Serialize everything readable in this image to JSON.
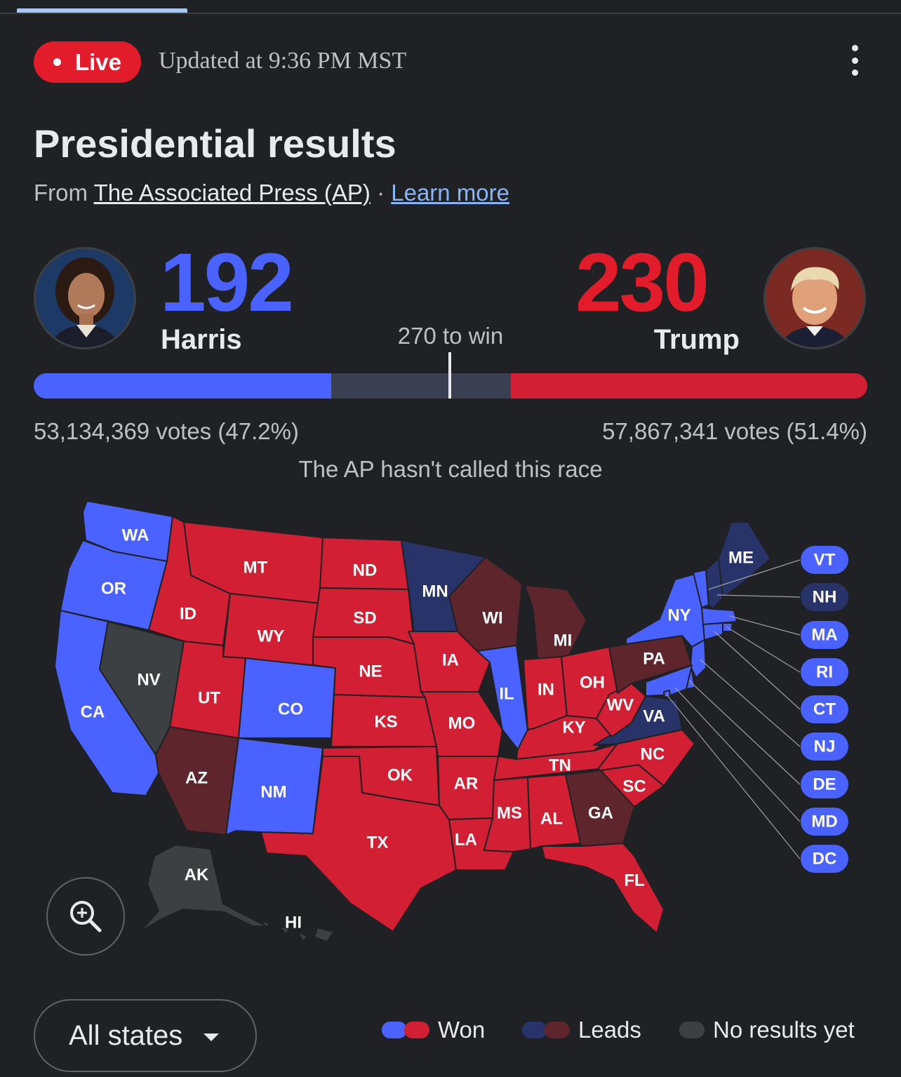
{
  "status": {
    "live_label": "Live",
    "updated_text": "Updated at 9:36 PM MST"
  },
  "header": {
    "title": "Presidential results",
    "source_prefix": "From",
    "source_name": "The Associated Press (AP)",
    "separator": "·",
    "learn_more": "Learn more"
  },
  "candidates": {
    "dem": {
      "name": "Harris",
      "electoral_votes": "192",
      "votes_text": "53,134,369 votes (47.2%)",
      "color": "#4a62ff"
    },
    "rep": {
      "name": "Trump",
      "electoral_votes": "230",
      "votes_text": "57,867,341 votes (51.4%)",
      "color": "#e21c2a"
    }
  },
  "threshold_label": "270 to win",
  "race_status": "The AP hasn't called this race",
  "colors": {
    "dem_won": "#4a62ff",
    "rep_won": "#d21f33",
    "dem_leads": "#283469",
    "rep_leads": "#5e262c",
    "no_results": "#3c4043"
  },
  "states": {
    "WA": "dem_won",
    "OR": "dem_won",
    "CA": "dem_won",
    "NV": "no_results",
    "ID": "rep_won",
    "MT": "rep_won",
    "WY": "rep_won",
    "UT": "rep_won",
    "AZ": "rep_leads",
    "CO": "dem_won",
    "NM": "dem_won",
    "ND": "rep_won",
    "SD": "rep_won",
    "NE": "rep_won",
    "KS": "rep_won",
    "OK": "rep_won",
    "TX": "rep_won",
    "MN": "dem_leads",
    "IA": "rep_won",
    "MO": "rep_won",
    "AR": "rep_won",
    "LA": "rep_won",
    "WI": "rep_leads",
    "IL": "dem_won",
    "MI": "rep_leads",
    "IN": "rep_won",
    "OH": "rep_won",
    "KY": "rep_won",
    "TN": "rep_won",
    "MS": "rep_won",
    "AL": "rep_won",
    "GA": "rep_leads",
    "FL": "rep_won",
    "SC": "rep_won",
    "NC": "rep_won",
    "VA": "dem_leads",
    "WV": "rep_won",
    "PA": "rep_leads",
    "NY": "dem_won",
    "ME": "dem_leads",
    "AK": "no_results",
    "HI": "no_results",
    "VT": "dem_won",
    "NH": "dem_leads",
    "MA": "dem_won",
    "RI": "dem_won",
    "CT": "dem_won",
    "NJ": "dem_won",
    "DE": "dem_won",
    "MD": "dem_won",
    "DC": "dem_won"
  },
  "controls": {
    "state_filter": "All states"
  },
  "legend": {
    "won": "Won",
    "leads": "Leads",
    "no_results": "No results yet"
  },
  "icons": {
    "zoom": "zoom-in-icon",
    "more": "more-vert-icon",
    "dropdown": "chevron-down-icon"
  }
}
